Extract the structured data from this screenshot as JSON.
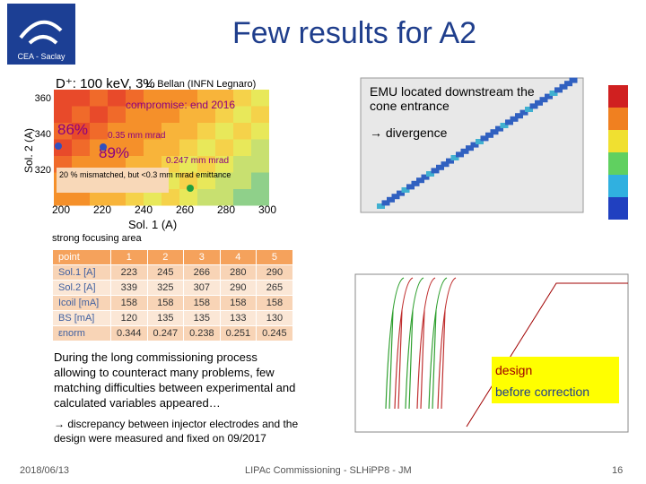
{
  "header": {
    "title": "Few results for A2",
    "logo_text": "CEA - Saclay"
  },
  "left": {
    "beam": "D⁺: 100 keV, 3%",
    "credit": "L. Bellan (INFN Legnaro)",
    "y_label": "Sol. 2 (A)",
    "x_label": "Sol. 1 (A)",
    "compromise": "compromise: end 2016",
    "annotations": [
      "86%",
      "0.35 mm mrad",
      "89%",
      "0.247 mm mrad",
      "20 % mismatched, but <0.3 mm mrad emittance"
    ],
    "x_ticks": [
      "200",
      "220",
      "240",
      "260",
      "280",
      "300"
    ],
    "y_ticks": [
      "360",
      "340",
      "320"
    ],
    "focus": "strong focusing area"
  },
  "table": {
    "header": [
      "point",
      "1",
      "2",
      "3",
      "4",
      "5"
    ],
    "rows": [
      [
        "Sol.1 [A]",
        "223",
        "245",
        "266",
        "280",
        "290"
      ],
      [
        "Sol.2 [A]",
        "339",
        "325",
        "307",
        "290",
        "265"
      ],
      [
        "Icoil [mA]",
        "158",
        "158",
        "158",
        "158",
        "158"
      ],
      [
        "BS [mA]",
        "120",
        "135",
        "135",
        "133",
        "130"
      ],
      [
        "εnorm",
        "0.344",
        "0.247",
        "0.238",
        "0.251",
        "0.245"
      ]
    ]
  },
  "right": {
    "emu": "EMU located downstream the cone entrance",
    "divergence": "→ divergence",
    "legend": [
      "design",
      "before correction"
    ]
  },
  "body": {
    "paragraph": "During the long commissioning process allowing to counteract many problems, few matching difficulties between experimental and calculated variables appeared…",
    "note": "→ discrepancy between injector electrodes and the design were measured and fixed on 09/2017"
  },
  "footer": {
    "date": "2018/06/13",
    "event": "LIPAc Commissioning - SLHiPP8 - JM",
    "page": "16"
  }
}
